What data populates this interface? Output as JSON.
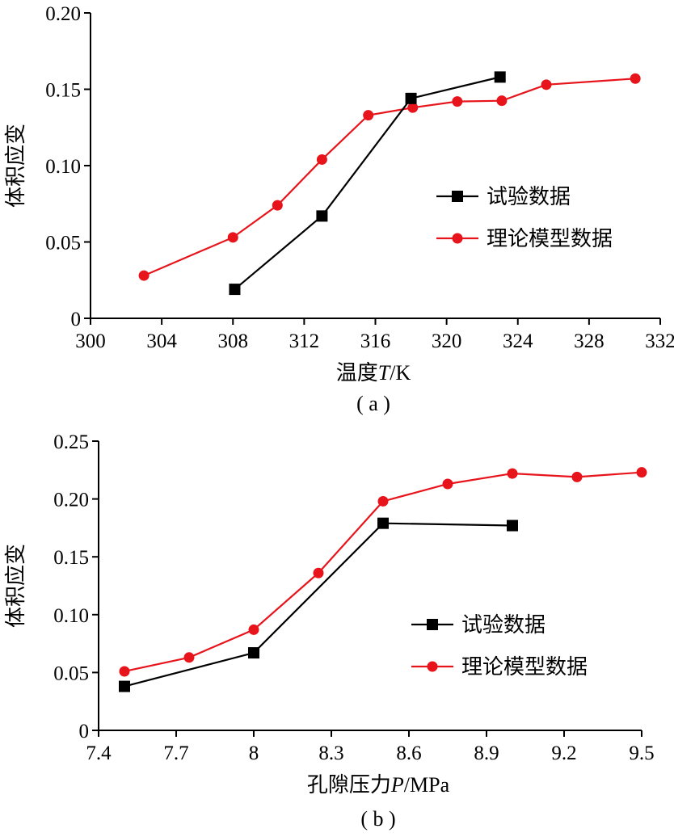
{
  "chart_data": [
    {
      "type": "line",
      "caption": "( a )",
      "xlabel_main": "温度",
      "xlabel_var": "T",
      "xlabel_unit": "/K",
      "ylabel": "体积应变",
      "xlim": [
        300,
        332
      ],
      "ylim": [
        0,
        0.2
      ],
      "xticks": [
        "300",
        "304",
        "308",
        "312",
        "316",
        "320",
        "324",
        "328",
        "332"
      ],
      "yticks": [
        "0",
        "0.05",
        "0.10",
        "0.15",
        "0.20"
      ],
      "grid": false,
      "legend_position": "right",
      "series": [
        {
          "name": "试验数据",
          "color": "#000000",
          "marker": "square",
          "points": [
            [
              308.1,
              0.019
            ],
            [
              313,
              0.067
            ],
            [
              318,
              0.144
            ],
            [
              323,
              0.158
            ]
          ]
        },
        {
          "name": "理论模型数据",
          "color": "#e8141b",
          "marker": "circle",
          "points": [
            [
              303,
              0.028
            ],
            [
              308,
              0.053
            ],
            [
              310.5,
              0.074
            ],
            [
              313,
              0.104
            ],
            [
              315.6,
              0.133
            ],
            [
              318.1,
              0.138
            ],
            [
              320.6,
              0.142
            ],
            [
              323.1,
              0.1425
            ],
            [
              325.6,
              0.153
            ],
            [
              330.6,
              0.157
            ]
          ]
        }
      ]
    },
    {
      "type": "line",
      "caption": "( b )",
      "xlabel_main": "孔隙压力",
      "xlabel_var": "P",
      "xlabel_unit": "/MPa",
      "ylabel": "体积应变",
      "xlim": [
        7.4,
        9.5
      ],
      "ylim": [
        0,
        0.25
      ],
      "xticks": [
        "7.4",
        "7.7",
        "8",
        "8.3",
        "8.6",
        "8.9",
        "9.2",
        "9.5"
      ],
      "yticks": [
        "0",
        "0.05",
        "0.10",
        "0.15",
        "0.20",
        "0.25"
      ],
      "grid": false,
      "legend_position": "right",
      "series": [
        {
          "name": "试验数据",
          "color": "#000000",
          "marker": "square",
          "points": [
            [
              7.5,
              0.038
            ],
            [
              8.0,
              0.067
            ],
            [
              8.5,
              0.179
            ],
            [
              9.0,
              0.177
            ]
          ]
        },
        {
          "name": "理论模型数据",
          "color": "#e8141b",
          "marker": "circle",
          "points": [
            [
              7.5,
              0.051
            ],
            [
              7.75,
              0.063
            ],
            [
              8.0,
              0.087
            ],
            [
              8.25,
              0.136
            ],
            [
              8.5,
              0.198
            ],
            [
              8.75,
              0.213
            ],
            [
              9.0,
              0.222
            ],
            [
              9.25,
              0.219
            ],
            [
              9.5,
              0.223
            ]
          ]
        }
      ]
    }
  ]
}
